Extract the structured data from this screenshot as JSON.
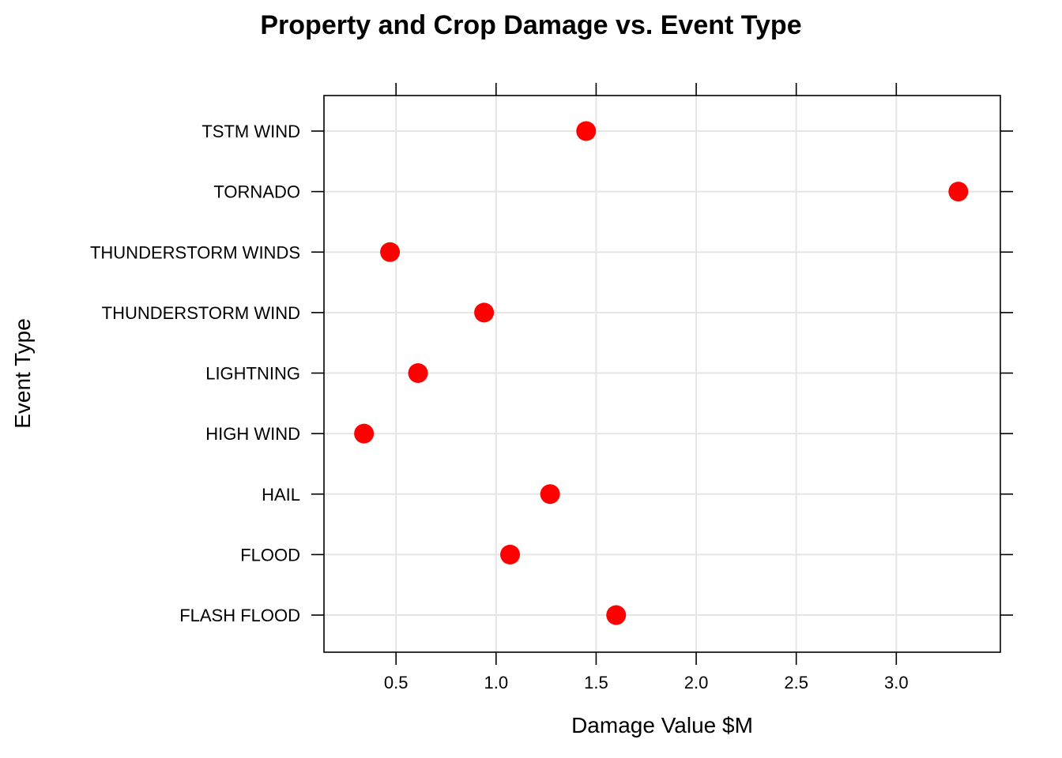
{
  "chart_data": {
    "type": "scatter",
    "title": "Property and Crop Damage vs. Event Type",
    "xlabel": "Damage Value $M",
    "ylabel": "Event Type",
    "xlim": [
      0.14,
      3.52
    ],
    "x_ticks": [
      "0.5",
      "1.0",
      "1.5",
      "2.0",
      "2.5",
      "3.0"
    ],
    "x_tick_values": [
      0.5,
      1.0,
      1.5,
      2.0,
      2.5,
      3.0
    ],
    "grid": true,
    "point_color": "#ff0000",
    "categories": [
      "FLASH FLOOD",
      "FLOOD",
      "HAIL",
      "HIGH WIND",
      "LIGHTNING",
      "THUNDERSTORM WIND",
      "THUNDERSTORM WINDS",
      "TORNADO",
      "TSTM WIND"
    ],
    "values": [
      1.6,
      1.07,
      1.27,
      0.34,
      0.61,
      0.94,
      0.47,
      3.31,
      1.45
    ]
  }
}
